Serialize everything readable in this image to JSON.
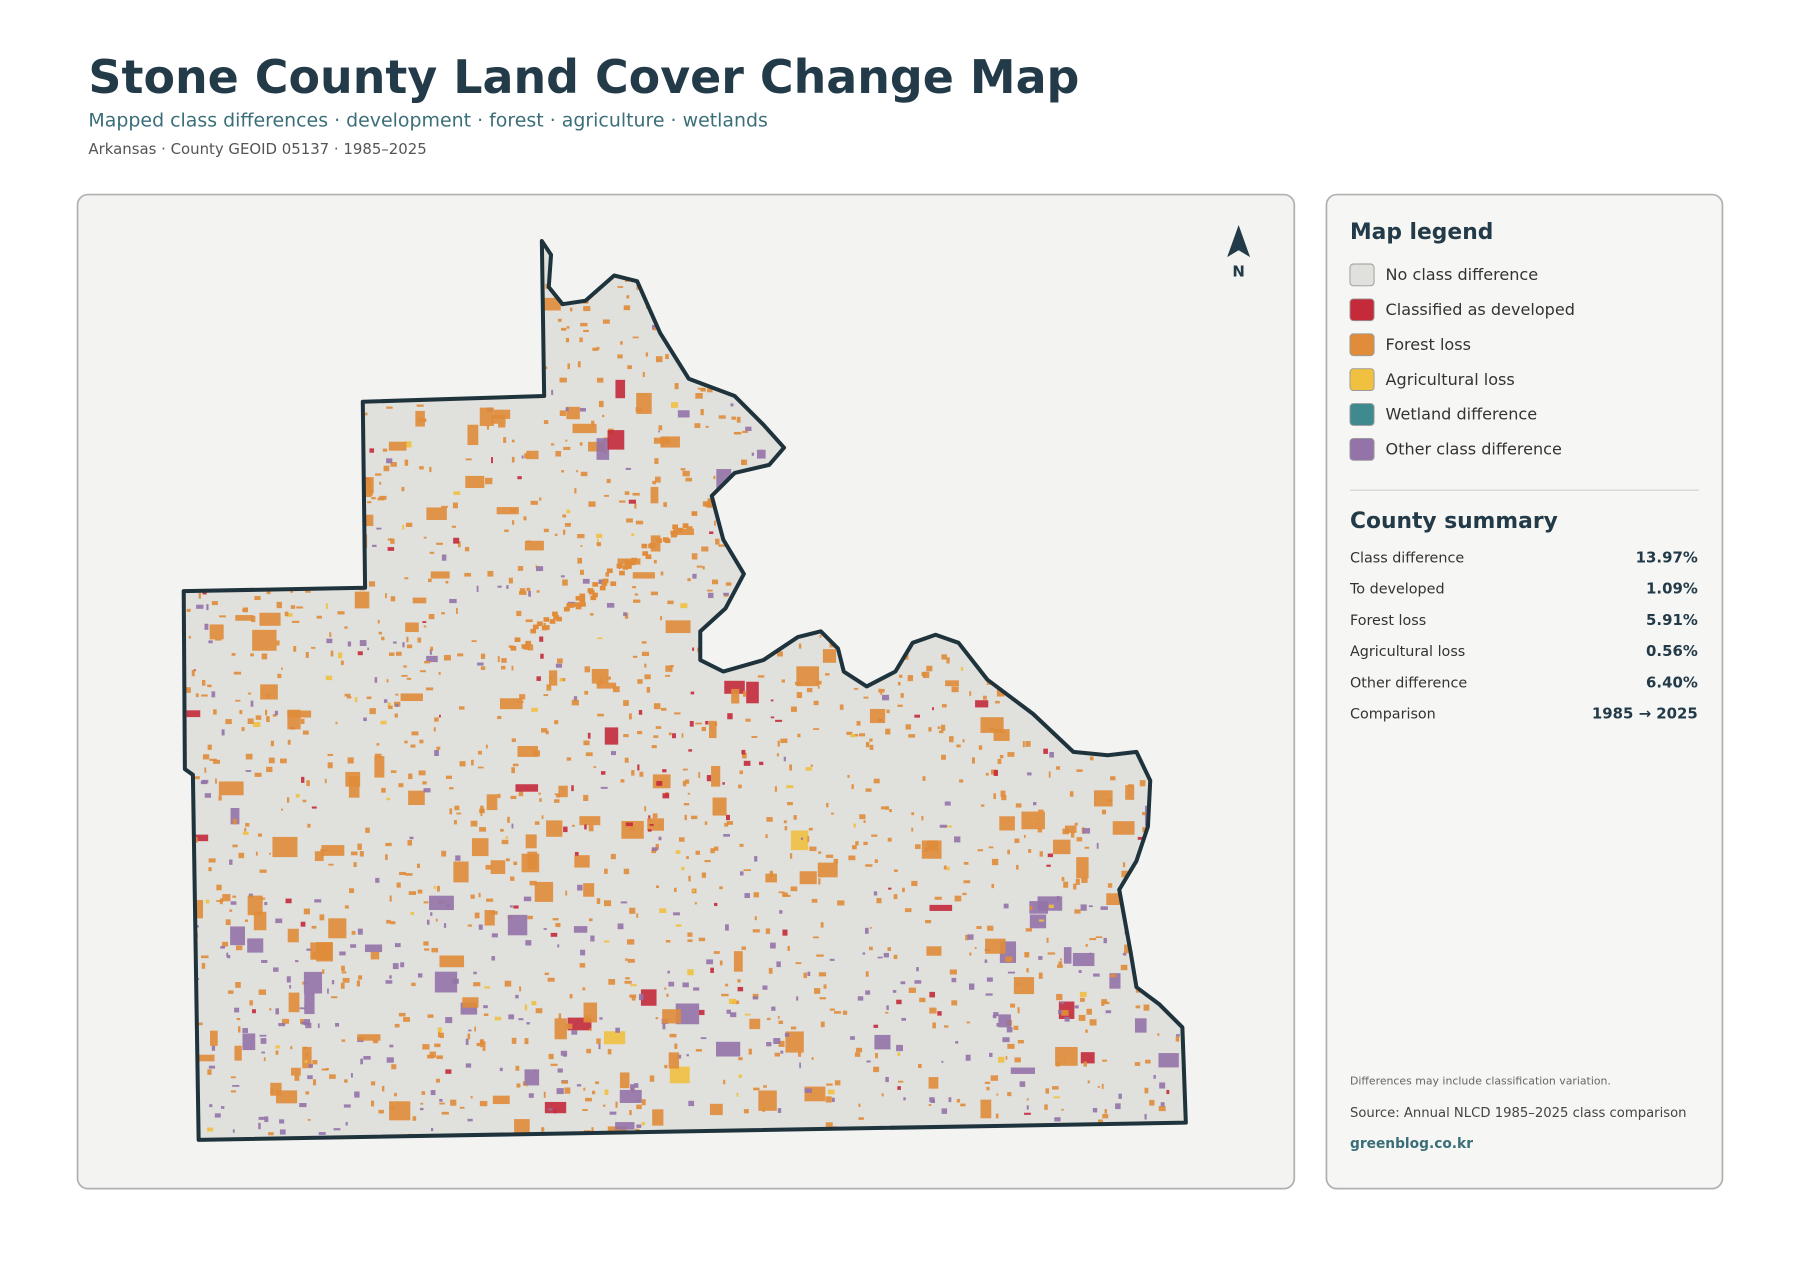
{
  "header": {
    "title": "Stone County Land Cover Change Map",
    "subtitle": "Mapped class differences · development · forest · agriculture · wetlands",
    "meta": "Arkansas · County GEOID 05137 · 1985–2025"
  },
  "map": {
    "north_label": "N"
  },
  "legend": {
    "title": "Map legend",
    "items": [
      {
        "label": "No class difference",
        "color": "#e0e0dc"
      },
      {
        "label": "Classified as developed",
        "color": "#c42a3a"
      },
      {
        "label": "Forest loss",
        "color": "#e08c3a"
      },
      {
        "label": "Agricultural loss",
        "color": "#f0c040"
      },
      {
        "label": "Wetland difference",
        "color": "#3e8a8e"
      },
      {
        "label": "Other class difference",
        "color": "#9473a8"
      }
    ]
  },
  "summary": {
    "title": "County summary",
    "rows": [
      {
        "label": "Class difference",
        "value": "13.97%"
      },
      {
        "label": "To developed",
        "value": "1.09%"
      },
      {
        "label": "Forest loss",
        "value": "5.91%"
      },
      {
        "label": "Agricultural loss",
        "value": "0.56%"
      },
      {
        "label": "Other difference",
        "value": "6.40%"
      },
      {
        "label": "Comparison",
        "value": "1985 → 2025"
      }
    ]
  },
  "footer": {
    "note": "Differences may include classification variation.",
    "source": "Source: Annual NLCD 1985–2025 class comparison",
    "site": "greenblog.co.kr"
  }
}
